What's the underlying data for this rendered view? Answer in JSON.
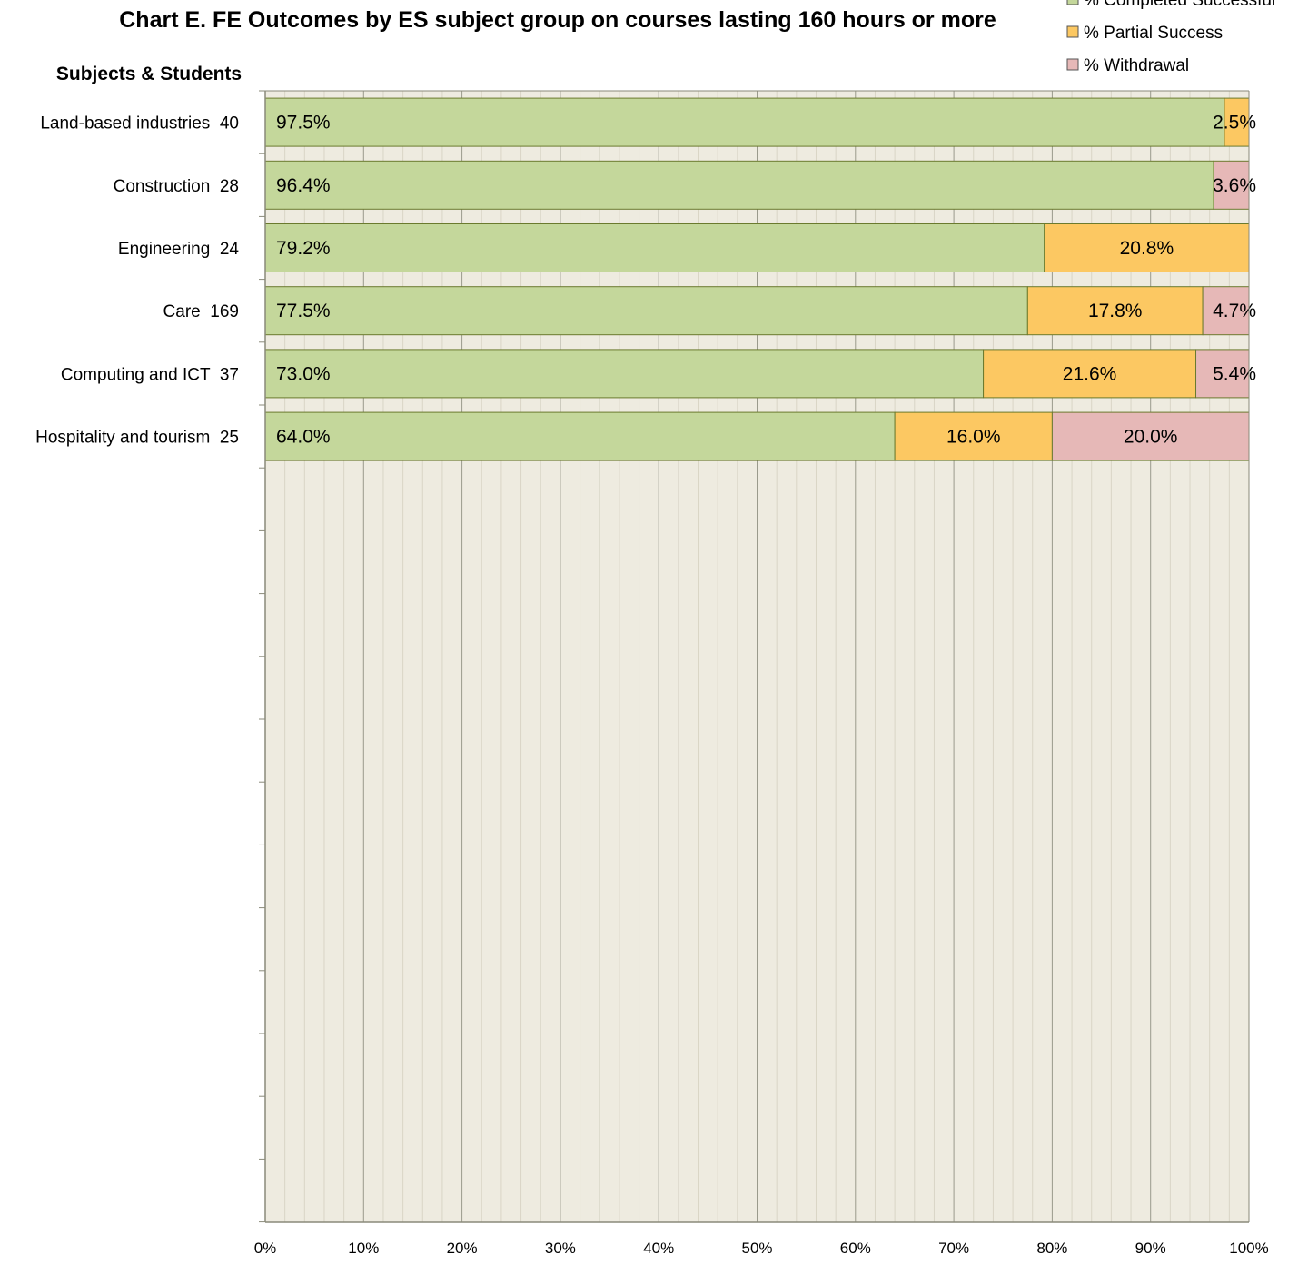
{
  "chart_data": {
    "type": "bar",
    "orientation": "horizontal",
    "stacked": true,
    "title": "Chart E. FE Outcomes by ES subject group on courses lasting 160 hours or more",
    "ylabel": "Subjects & Students",
    "xlim": [
      0,
      100
    ],
    "x_ticks": [
      "0%",
      "10%",
      "20%",
      "30%",
      "40%",
      "50%",
      "60%",
      "70%",
      "80%",
      "90%",
      "100%"
    ],
    "categories": [
      "Land-based industries  40",
      "Construction  28",
      "Engineering  24",
      "Care  169",
      "Computing and ICT  37",
      "Hospitality and tourism  25"
    ],
    "series": [
      {
        "name": "% Completed Successful",
        "color": "#c4d79b",
        "values": [
          97.5,
          96.4,
          79.2,
          77.5,
          73.0,
          64.0
        ],
        "labels": [
          "97.5%",
          "96.4%",
          "79.2%",
          "77.5%",
          "73.0%",
          "64.0%"
        ]
      },
      {
        "name": "% Partial Success",
        "color": "#fcc862",
        "values": [
          2.5,
          0,
          20.8,
          17.8,
          21.6,
          16.0
        ],
        "labels": [
          "2.5%",
          "",
          "20.8%",
          "17.8%",
          "21.6%",
          "16.0%"
        ]
      },
      {
        "name": "% Withdrawal",
        "color": "#e6b8b7",
        "values": [
          0,
          3.6,
          0,
          4.7,
          5.4,
          20.0
        ],
        "labels": [
          "",
          "3.6%",
          "",
          "4.7%",
          "5.4%",
          "20.0%"
        ]
      }
    ],
    "grid": true,
    "legend_position": "top-right"
  }
}
